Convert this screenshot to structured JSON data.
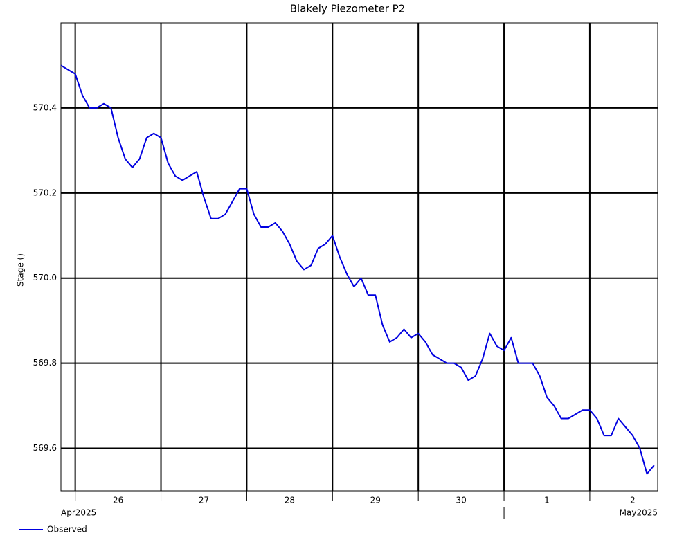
{
  "chart_data": {
    "type": "line",
    "title": "Blakely Piezometer P2",
    "y_label": "Stage ()",
    "x": [
      "2025-04-25T20:00",
      "2025-04-25T22:00",
      "2025-04-26T00:00",
      "2025-04-26T02:00",
      "2025-04-26T04:00",
      "2025-04-26T06:00",
      "2025-04-26T08:00",
      "2025-04-26T10:00",
      "2025-04-26T12:00",
      "2025-04-26T14:00",
      "2025-04-26T16:00",
      "2025-04-26T18:00",
      "2025-04-26T20:00",
      "2025-04-26T22:00",
      "2025-04-27T00:00",
      "2025-04-27T02:00",
      "2025-04-27T04:00",
      "2025-04-27T06:00",
      "2025-04-27T08:00",
      "2025-04-27T10:00",
      "2025-04-27T12:00",
      "2025-04-27T14:00",
      "2025-04-27T16:00",
      "2025-04-27T18:00",
      "2025-04-27T20:00",
      "2025-04-27T22:00",
      "2025-04-28T00:00",
      "2025-04-28T02:00",
      "2025-04-28T04:00",
      "2025-04-28T06:00",
      "2025-04-28T08:00",
      "2025-04-28T10:00",
      "2025-04-28T12:00",
      "2025-04-28T14:00",
      "2025-04-28T16:00",
      "2025-04-28T18:00",
      "2025-04-28T20:00",
      "2025-04-28T22:00",
      "2025-04-29T00:00",
      "2025-04-29T02:00",
      "2025-04-29T04:00",
      "2025-04-29T06:00",
      "2025-04-29T08:00",
      "2025-04-29T10:00",
      "2025-04-29T12:00",
      "2025-04-29T14:00",
      "2025-04-29T16:00",
      "2025-04-29T18:00",
      "2025-04-29T20:00",
      "2025-04-29T22:00",
      "2025-04-30T00:00",
      "2025-04-30T02:00",
      "2025-04-30T04:00",
      "2025-04-30T06:00",
      "2025-04-30T08:00",
      "2025-04-30T10:00",
      "2025-04-30T12:00",
      "2025-04-30T14:00",
      "2025-04-30T16:00",
      "2025-04-30T18:00",
      "2025-04-30T20:00",
      "2025-04-30T22:00",
      "2025-05-01T00:00",
      "2025-05-01T02:00",
      "2025-05-01T04:00",
      "2025-05-01T06:00",
      "2025-05-01T08:00",
      "2025-05-01T10:00",
      "2025-05-01T12:00",
      "2025-05-01T14:00",
      "2025-05-01T16:00",
      "2025-05-01T18:00",
      "2025-05-01T20:00",
      "2025-05-01T22:00",
      "2025-05-02T00:00",
      "2025-05-02T02:00",
      "2025-05-02T04:00",
      "2025-05-02T06:00",
      "2025-05-02T08:00",
      "2025-05-02T10:00",
      "2025-05-02T12:00",
      "2025-05-02T14:00",
      "2025-05-02T16:00",
      "2025-05-02T18:00"
    ],
    "series": [
      {
        "name": "Observed",
        "color": "#0000e0",
        "values": [
          570.5,
          570.49,
          570.48,
          570.43,
          570.4,
          570.4,
          570.41,
          570.4,
          570.33,
          570.28,
          570.26,
          570.28,
          570.33,
          570.34,
          570.33,
          570.27,
          570.24,
          570.23,
          570.24,
          570.25,
          570.19,
          570.14,
          570.14,
          570.15,
          570.18,
          570.21,
          570.21,
          570.15,
          570.12,
          570.12,
          570.13,
          570.11,
          570.08,
          570.04,
          570.02,
          570.03,
          570.07,
          570.08,
          570.1,
          570.05,
          570.01,
          569.98,
          570.0,
          569.96,
          569.96,
          569.89,
          569.85,
          569.86,
          569.88,
          569.86,
          569.87,
          569.85,
          569.82,
          569.81,
          569.8,
          569.8,
          569.79,
          569.76,
          569.77,
          569.81,
          569.87,
          569.84,
          569.83,
          569.86,
          569.8,
          569.8,
          569.8,
          569.77,
          569.72,
          569.7,
          569.67,
          569.67,
          569.68,
          569.69,
          569.69,
          569.67,
          569.63,
          569.63,
          569.67,
          569.65,
          569.63,
          569.6,
          569.54,
          569.56
        ]
      }
    ],
    "xlim": [
      "2025-04-25T20:00",
      "2025-05-02T19:00"
    ],
    "xticks": [
      {
        "value": "2025-04-26T00:00",
        "label": "26"
      },
      {
        "value": "2025-04-27T00:00",
        "label": "27"
      },
      {
        "value": "2025-04-28T00:00",
        "label": "28"
      },
      {
        "value": "2025-04-29T00:00",
        "label": "29"
      },
      {
        "value": "2025-04-30T00:00",
        "label": "30"
      },
      {
        "value": "2025-05-01T00:00",
        "label": "1"
      },
      {
        "value": "2025-05-02T00:00",
        "label": "2"
      }
    ],
    "month_labels": [
      {
        "value": "2025-04-26T00:00",
        "label": "Apr2025"
      },
      {
        "value": "2025-05-01T00:00",
        "label": "May2025"
      }
    ],
    "ylim": [
      569.5,
      570.6
    ],
    "yticks": [
      569.6,
      569.8,
      {
        "value": 570,
        "label": "570.0"
      },
      570.2,
      570.4
    ],
    "grid": true
  }
}
